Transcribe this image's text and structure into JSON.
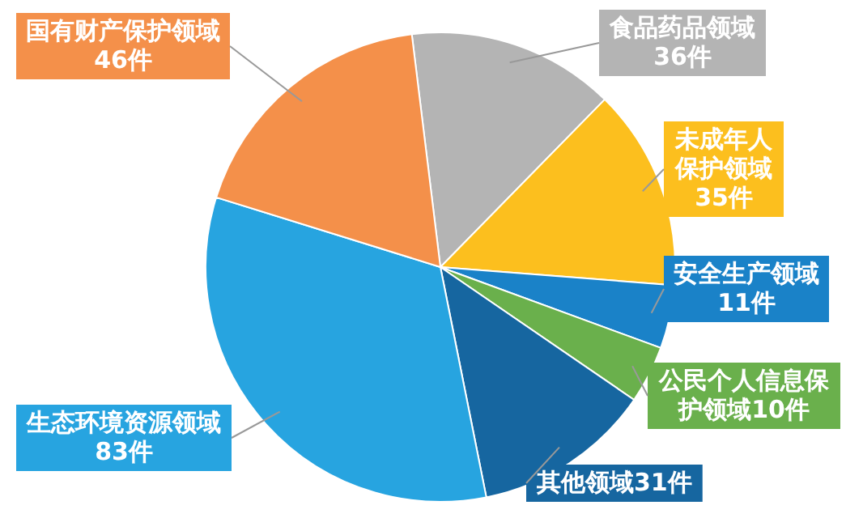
{
  "chart_data": {
    "type": "pie",
    "categories": [
      "食品药品领域",
      "未成年人保护领域",
      "安全生产领域",
      "公民个人信息保护领域",
      "其他领域",
      "生态环境资源领域",
      "国有财产保护领域"
    ],
    "values": [
      36,
      35,
      11,
      10,
      31,
      83,
      46
    ],
    "value_labels": [
      "36件",
      "35件",
      "11件",
      "10件",
      "31件",
      "83件",
      "46件"
    ],
    "colors": [
      "#b4b4b4",
      "#fcbf1e",
      "#1a82c8",
      "#6ab04c",
      "#1666a0",
      "#27a4e0",
      "#f4904a"
    ]
  }
}
